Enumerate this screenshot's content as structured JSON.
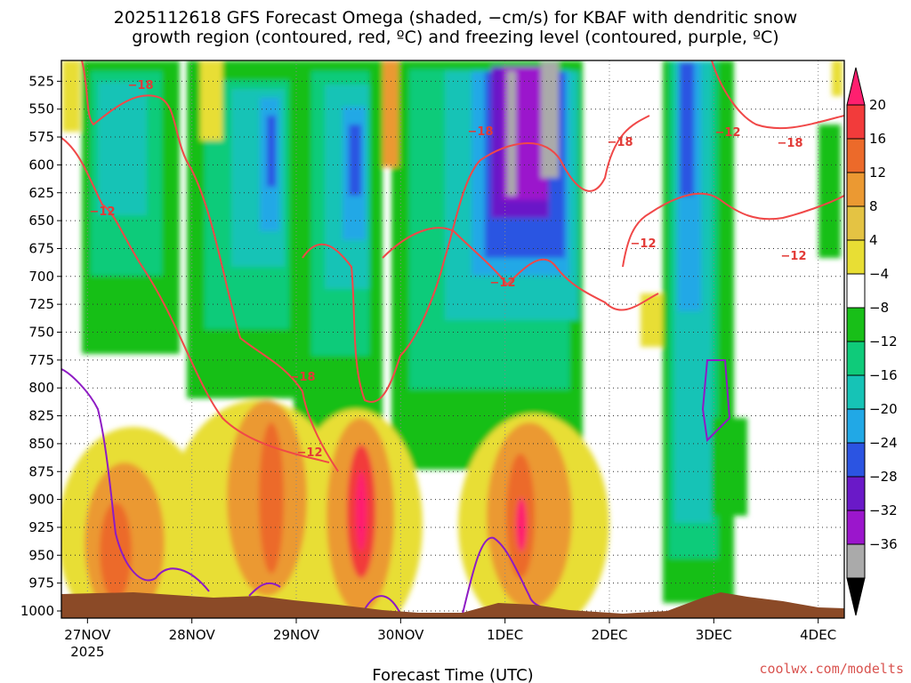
{
  "chart_data": {
    "type": "heatmap",
    "title_line1": "2025112618 GFS Forecast Omega (shaded, −cm/s) for KBAF with dendritic snow",
    "title_line2": "growth region (contoured, red, ºC) and freezing level (contoured, purple, ºC)",
    "xlabel": "Forecast Time (UTC)",
    "ylabel": "",
    "credit": "coolwx.com/modelts",
    "y_ticks": [
      "525",
      "550",
      "575",
      "600",
      "625",
      "650",
      "675",
      "700",
      "725",
      "750",
      "775",
      "800",
      "825",
      "850",
      "875",
      "900",
      "925",
      "950",
      "975",
      "1000"
    ],
    "y_values": [
      525,
      550,
      575,
      600,
      625,
      650,
      675,
      700,
      725,
      750,
      775,
      800,
      825,
      850,
      875,
      900,
      925,
      950,
      975,
      1000
    ],
    "ylim_hpa": [
      500,
      1000
    ],
    "x_ticks": [
      "27NOV",
      "28NOV",
      "29NOV",
      "30NOV",
      "1DEC",
      "2DEC",
      "3DEC",
      "4DEC"
    ],
    "x_tick_year": "2025",
    "xlim_days": [
      -0.25,
      7.25
    ],
    "colorbar_labels": [
      "20",
      "16",
      "12",
      "8",
      "4",
      "−4",
      "−8",
      "−12",
      "−16",
      "−20",
      "−24",
      "−28",
      "−32",
      "−36"
    ],
    "colorbar_values": [
      20,
      16,
      12,
      8,
      4,
      -4,
      -8,
      -12,
      -16,
      -20,
      -24,
      -28,
      -32,
      -36
    ],
    "colorbar_colors": [
      "#ff1f6f",
      "#f23b3b",
      "#ec6a2a",
      "#eb9932",
      "#e4c343",
      "#e8de34",
      "#ffffff",
      "#18bf18",
      "#0fcb7a",
      "#16c3b6",
      "#21a8e6",
      "#2b54e2",
      "#6a19c8",
      "#9b16cc",
      "#aaaaaa",
      "#000000"
    ],
    "contour_labels": [
      {
        "text": "−18"
      },
      {
        "text": "−12"
      },
      {
        "text": "−18"
      },
      {
        "text": "−12"
      },
      {
        "text": "−18"
      },
      {
        "text": "−12"
      },
      {
        "text": "−18"
      },
      {
        "text": "−12"
      },
      {
        "text": "−12"
      },
      {
        "text": "−18"
      },
      {
        "text": "−12"
      }
    ],
    "contour_colors": {
      "dendritic": "#f04848",
      "freezing": "#8e1bc4",
      "terrain": "#8b4a27"
    }
  }
}
